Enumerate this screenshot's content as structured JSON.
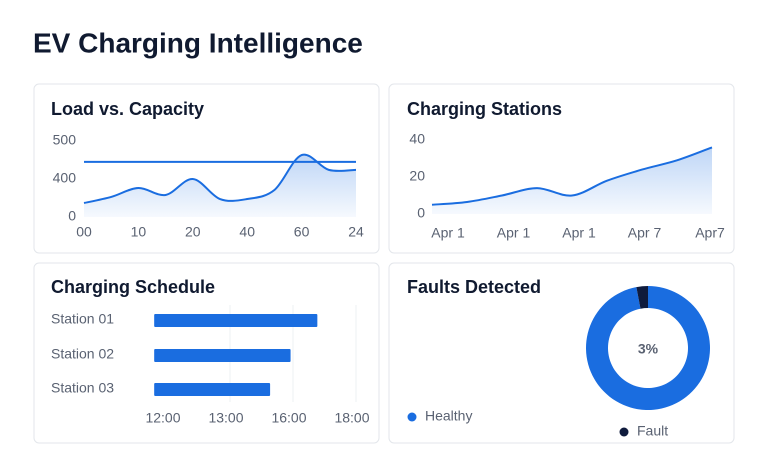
{
  "header": {
    "title": "EV Charging Intelligence"
  },
  "chart_data": [
    {
      "type": "line",
      "title": "Load vs. Capacity",
      "categories": [
        "00",
        null,
        "10",
        null,
        "20",
        null,
        "40",
        null,
        "60",
        null,
        "24"
      ],
      "series": [
        {
          "color": "#1a6de0",
          "area": true,
          "values": [
            147,
            211,
            305,
            232,
            400,
            189,
            189,
            284,
            463,
            424,
            424
          ]
        },
        {
          "color": "#1a6de0",
          "area": false,
          "values": [
            445,
            445,
            445,
            445,
            445,
            445,
            445,
            445,
            445,
            445,
            445
          ]
        }
      ],
      "ylim": [
        0,
        500
      ],
      "yticks": [
        0,
        400,
        500
      ],
      "grid": false
    },
    {
      "type": "line",
      "title": "Charging Stations",
      "categories": [
        "Apr 1",
        null,
        "Apr 1",
        null,
        "Apr 1",
        null,
        "Apr 7",
        null,
        "Apr7"
      ],
      "series": [
        {
          "color": "#1a6de0",
          "area": true,
          "values": [
            5,
            6.5,
            10,
            14,
            10,
            18,
            24,
            29,
            36
          ]
        }
      ],
      "ylim": [
        0,
        40
      ],
      "yticks": [
        0,
        20,
        40
      ],
      "grid": false
    },
    {
      "type": "hbar",
      "title": "Charging Schedule",
      "categories": [
        "Station 01",
        "Station 02",
        "Station 03"
      ],
      "values": [
        16.9,
        16.05,
        15.1
      ],
      "color": "#1a6de0",
      "xlim": [
        11.86,
        18
      ],
      "xticks": [
        {
          "value": 12,
          "label": "12:00"
        },
        {
          "value": 13,
          "label": "13:00"
        },
        {
          "value": 16,
          "label": "16:00"
        },
        {
          "value": 18,
          "label": "18:00"
        }
      ],
      "grid": true
    },
    {
      "type": "pie",
      "title": "Faults Detected",
      "categories": [
        "Healthy",
        "Fault"
      ],
      "values": [
        97,
        3
      ],
      "value_labels": [
        null,
        "3%"
      ],
      "colors": [
        "#1a6de0",
        "#0f1b3d"
      ]
    }
  ]
}
